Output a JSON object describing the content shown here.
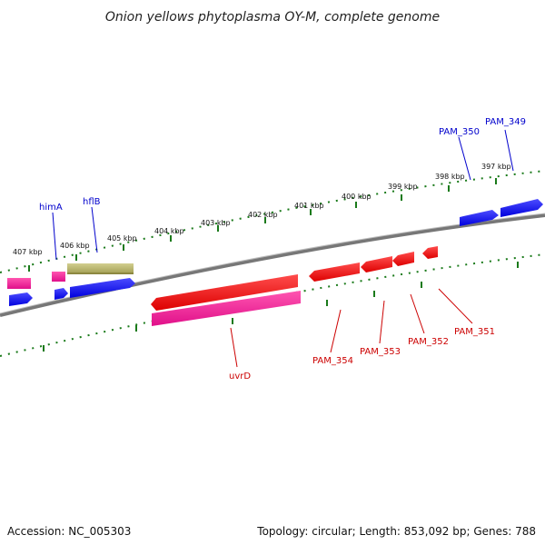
{
  "title": "Onion yellows phytoplasma OY-M, complete genome",
  "footer": {
    "accession": "Accession: NC_005303",
    "summary": "Topology: circular; Length: 853,092 bp; Genes: 788"
  },
  "ticks": [
    {
      "kbp": 397,
      "label": "397 kbp"
    },
    {
      "kbp": 398,
      "label": "398 kbp"
    },
    {
      "kbp": 399,
      "label": "399 kbp"
    },
    {
      "kbp": 400,
      "label": "400 kbp"
    },
    {
      "kbp": 401,
      "label": "401 kbp"
    },
    {
      "kbp": 402,
      "label": "402 kbp"
    },
    {
      "kbp": 403,
      "label": "403 kbp"
    },
    {
      "kbp": 404,
      "label": "404 kbp"
    },
    {
      "kbp": 405,
      "label": "405 kbp"
    },
    {
      "kbp": 406,
      "label": "406 kbp"
    },
    {
      "kbp": 407,
      "label": "407 kbp"
    }
  ],
  "genes_top": [
    {
      "label": "PAM_349",
      "color": "#0000cc"
    },
    {
      "label": "PAM_350",
      "color": "#0000cc"
    },
    {
      "label": "hflB",
      "color": "#0000cc"
    },
    {
      "label": "himA",
      "color": "#0000cc"
    }
  ],
  "genes_bottom": [
    {
      "label": "PAM_351",
      "color": "#cc0000"
    },
    {
      "label": "PAM_352",
      "color": "#cc0000"
    },
    {
      "label": "PAM_353",
      "color": "#cc0000"
    },
    {
      "label": "PAM_354",
      "color": "#cc0000"
    },
    {
      "label": "uvrD",
      "color": "#cc0000"
    }
  ],
  "colors": {
    "forward_gene": "#0000ff",
    "reverse_gene": "#ff0000",
    "rna": "#ff1493",
    "other": "#b8b46a",
    "backbone": "#777777",
    "tick": "#1a7a1a"
  }
}
